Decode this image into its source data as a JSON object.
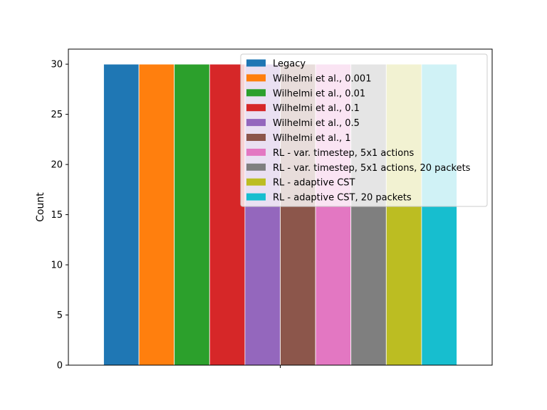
{
  "chart_data": {
    "type": "bar",
    "title": "",
    "xlabel": "",
    "ylabel": "Count",
    "categories": [
      ""
    ],
    "ylim": [
      0,
      31.5
    ],
    "yticks": [
      0,
      5,
      10,
      15,
      20,
      25,
      30
    ],
    "grid": false,
    "legend_position": "top-right",
    "series": [
      {
        "name": "Legacy",
        "values": [
          30
        ],
        "color": "#1f77b4"
      },
      {
        "name": "Wilhelmi et al., 0.001",
        "values": [
          30
        ],
        "color": "#ff7f0e"
      },
      {
        "name": "Wilhelmi et al., 0.01",
        "values": [
          30
        ],
        "color": "#2ca02c"
      },
      {
        "name": "Wilhelmi et al., 0.1",
        "values": [
          30
        ],
        "color": "#d62728"
      },
      {
        "name": "Wilhelmi et al., 0.5",
        "values": [
          30
        ],
        "color": "#9467bd"
      },
      {
        "name": "Wilhelmi et al., 1",
        "values": [
          30
        ],
        "color": "#8c564b"
      },
      {
        "name": "RL - var. timestep, 5x1 actions",
        "values": [
          30
        ],
        "color": "#e377c2"
      },
      {
        "name": "RL - var. timestep, 5x1 actions, 20 packets",
        "values": [
          30
        ],
        "color": "#7f7f7f"
      },
      {
        "name": "RL - adaptive CST",
        "values": [
          30
        ],
        "color": "#bcbd22"
      },
      {
        "name": "RL - adaptive CST, 20 packets",
        "values": [
          30
        ],
        "color": "#17becf"
      }
    ]
  }
}
